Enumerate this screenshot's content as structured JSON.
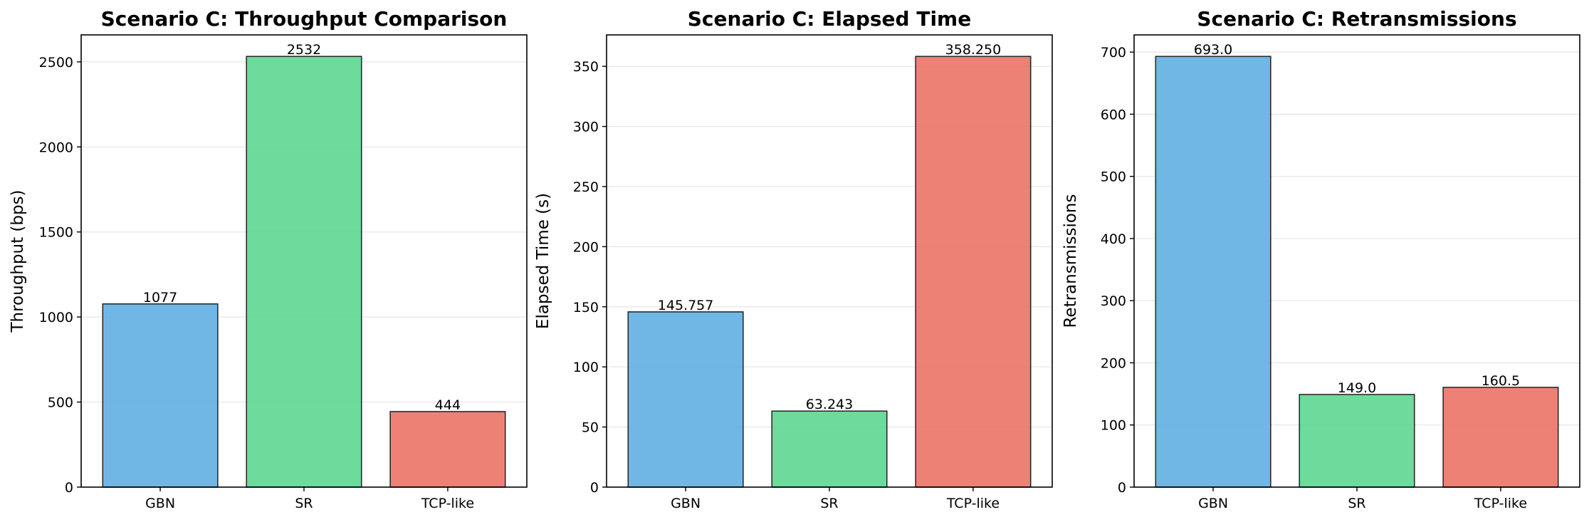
{
  "chart_data": [
    {
      "type": "bar",
      "title": "Scenario C: Throughput Comparison",
      "ylabel": "Throughput (bps)",
      "categories": [
        "GBN",
        "SR",
        "TCP-like"
      ],
      "values": [
        1077,
        2532,
        444
      ],
      "labels": [
        "1077",
        "2532",
        "444"
      ],
      "colors": [
        "#5dade2",
        "#58d68d",
        "#ec7063"
      ],
      "ylim": [
        0,
        2658.6
      ],
      "yticks": [
        0,
        500,
        1000,
        1500,
        2000,
        2500
      ],
      "grid": "y"
    },
    {
      "type": "bar",
      "title": "Scenario C: Elapsed Time",
      "ylabel": "Elapsed Time (s)",
      "categories": [
        "GBN",
        "SR",
        "TCP-like"
      ],
      "values": [
        145.757,
        63.243,
        358.25
      ],
      "labels": [
        "145.757",
        "63.243",
        "358.250"
      ],
      "colors": [
        "#5dade2",
        "#58d68d",
        "#ec7063"
      ],
      "ylim": [
        0,
        376.16
      ],
      "yticks": [
        0,
        50,
        100,
        150,
        200,
        250,
        300,
        350
      ],
      "grid": "y"
    },
    {
      "type": "bar",
      "title": "Scenario C: Retransmissions",
      "ylabel": "Retransmissions",
      "categories": [
        "GBN",
        "SR",
        "TCP-like"
      ],
      "values": [
        693.0,
        149.0,
        160.5
      ],
      "labels": [
        "693.0",
        "149.0",
        "160.5"
      ],
      "colors": [
        "#5dade2",
        "#58d68d",
        "#ec7063"
      ],
      "ylim": [
        0,
        727.65
      ],
      "yticks": [
        0,
        100,
        200,
        300,
        400,
        500,
        600,
        700
      ],
      "grid": "y"
    }
  ]
}
